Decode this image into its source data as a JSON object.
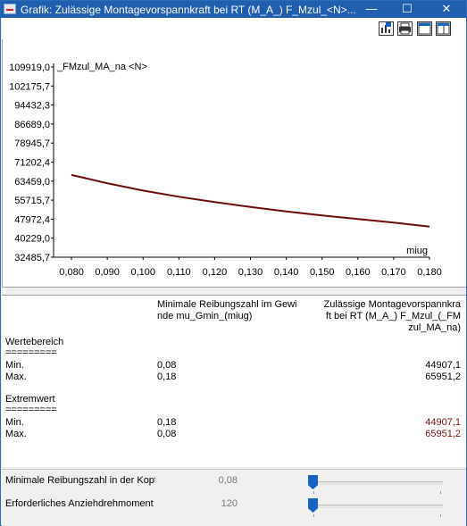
{
  "window": {
    "title": "Grafik: Zulässige Montagevorspannkraft bei RT (M_A_) F_Mzul_<N>...",
    "minimize_glyph": "—",
    "maximize_glyph": "☐",
    "close_glyph": "✕"
  },
  "toolbar": {
    "icons": [
      "chart-settings-icon",
      "print-icon",
      "window-icon",
      "split-view-icon"
    ]
  },
  "chart_data": {
    "type": "line",
    "ylabel": "_FMzul_MA_na <N>",
    "xlabel": "miug",
    "ytick_labels": [
      "109919,0",
      "102175,7",
      "94432,3",
      "86689,0",
      "78945,7",
      "71202,4",
      "63459,0",
      "55715,7",
      "47972,4",
      "40229,0",
      "32485,7"
    ],
    "yticks": [
      109919.0,
      102175.7,
      94432.3,
      86689.0,
      78945.7,
      71202.4,
      63459.0,
      55715.7,
      47972.4,
      40229.0,
      32485.7
    ],
    "xtick_labels": [
      "0,080",
      "0,090",
      "0,100",
      "0,110",
      "0,120",
      "0,130",
      "0,140",
      "0,150",
      "0,160",
      "0,170",
      "0,180"
    ],
    "xticks": [
      0.08,
      0.09,
      0.1,
      0.11,
      0.12,
      0.13,
      0.14,
      0.15,
      0.16,
      0.17,
      0.18
    ],
    "xlim": [
      0.075,
      0.18
    ],
    "ylim": [
      32485.7,
      109919.0
    ],
    "series": [
      {
        "color": "#6b0a0a",
        "x": [
          0.08,
          0.09,
          0.1,
          0.11,
          0.12,
          0.13,
          0.14,
          0.15,
          0.16,
          0.17,
          0.18
        ],
        "y": [
          65951.2,
          62600,
          59600,
          57100,
          54900,
          52900,
          51100,
          49500,
          48000,
          46600,
          44907.1
        ]
      }
    ],
    "grid": false
  },
  "table": {
    "col1_header": [
      "Minimale Reibungszahl im Gewi",
      "nde mu_Gmin_(miug)"
    ],
    "col2_header": [
      "Zulässige Montagevorspannkra",
      "ft bei RT (M_A_) F_Mzul_(_FM",
      "zul_MA_na)"
    ],
    "sections": [
      {
        "title": "Wertebereich",
        "underline": "=========",
        "rows": [
          {
            "label": "Min.",
            "v1": "0,08",
            "v2": "44907,1"
          },
          {
            "label": "Max.",
            "v1": "0,18",
            "v2": "65951,2"
          }
        ]
      },
      {
        "title": "Extremwert",
        "underline": "=========",
        "rows": [
          {
            "label": "Min.",
            "v1": "0,18",
            "v2": "44907,1"
          },
          {
            "label": "Max.",
            "v1": "0,08",
            "v2": "65951,2"
          }
        ]
      }
    ]
  },
  "params": [
    {
      "label": "Minimale Reibungszahl in der Kopfa",
      "value": "0,08"
    },
    {
      "label": "Erforderliches Anziehdrehmoment b",
      "value": "120"
    }
  ]
}
